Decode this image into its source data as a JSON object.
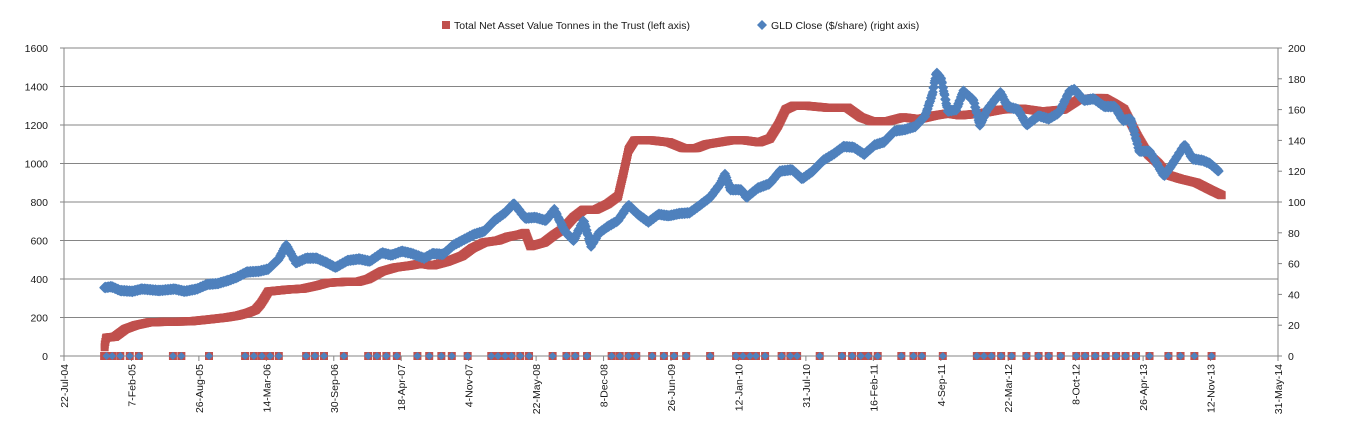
{
  "chart_data": {
    "type": "scatter",
    "series": [
      {
        "name": "Total Net Asset Value Tonnes in the Trust (left axis)",
        "axis": "left",
        "color": "#c0504d",
        "marker": "square",
        "points": [
          [
            "2004-11-18",
            0
          ],
          [
            "2004-11-20",
            60
          ],
          [
            "2004-11-24",
            95
          ],
          [
            "2004-12-20",
            100
          ],
          [
            "2005-01-20",
            140
          ],
          [
            "2005-02-20",
            160
          ],
          [
            "2005-04-01",
            175
          ],
          [
            "2005-06-01",
            178
          ],
          [
            "2005-08-01",
            180
          ],
          [
            "2005-09-25",
            190
          ],
          [
            "2005-11-15",
            200
          ],
          [
            "2005-12-20",
            210
          ],
          [
            "2006-01-20",
            225
          ],
          [
            "2006-02-10",
            240
          ],
          [
            "2006-02-25",
            270
          ],
          [
            "2006-03-08",
            300
          ],
          [
            "2006-03-20",
            335
          ],
          [
            "2006-05-15",
            345
          ],
          [
            "2006-07-01",
            350
          ],
          [
            "2006-08-10",
            365
          ],
          [
            "2006-09-10",
            380
          ],
          [
            "2006-11-01",
            385
          ],
          [
            "2006-12-10",
            385
          ],
          [
            "2007-01-10",
            400
          ],
          [
            "2007-02-20",
            440
          ],
          [
            "2007-04-01",
            460
          ],
          [
            "2007-05-15",
            470
          ],
          [
            "2007-06-15",
            480
          ],
          [
            "2007-07-20",
            470
          ],
          [
            "2007-09-01",
            490
          ],
          [
            "2007-10-15",
            520
          ],
          [
            "2007-11-15",
            560
          ],
          [
            "2007-12-20",
            590
          ],
          [
            "2008-01-30",
            600
          ],
          [
            "2008-03-01",
            620
          ],
          [
            "2008-04-01",
            630
          ],
          [
            "2008-04-20",
            640
          ],
          [
            "2008-05-05",
            570
          ],
          [
            "2008-06-15",
            590
          ],
          [
            "2008-07-15",
            630
          ],
          [
            "2008-08-10",
            660
          ],
          [
            "2008-09-10",
            720
          ],
          [
            "2008-10-10",
            760
          ],
          [
            "2008-11-15",
            760
          ],
          [
            "2008-12-20",
            790
          ],
          [
            "2009-01-20",
            830
          ],
          [
            "2009-02-05",
            950
          ],
          [
            "2009-02-20",
            1070
          ],
          [
            "2009-03-10",
            1120
          ],
          [
            "2009-05-01",
            1120
          ],
          [
            "2009-06-20",
            1110
          ],
          [
            "2009-08-01",
            1080
          ],
          [
            "2009-09-10",
            1080
          ],
          [
            "2009-10-10",
            1100
          ],
          [
            "2009-11-15",
            1110
          ],
          [
            "2009-12-20",
            1120
          ],
          [
            "2010-02-01",
            1120
          ],
          [
            "2010-03-15",
            1110
          ],
          [
            "2010-04-15",
            1130
          ],
          [
            "2010-05-10",
            1200
          ],
          [
            "2010-06-01",
            1280
          ],
          [
            "2010-06-25",
            1300
          ],
          [
            "2010-08-01",
            1300
          ],
          [
            "2010-10-01",
            1290
          ],
          [
            "2010-12-01",
            1290
          ],
          [
            "2011-01-10",
            1240
          ],
          [
            "2011-02-10",
            1220
          ],
          [
            "2011-04-01",
            1220
          ],
          [
            "2011-05-15",
            1240
          ],
          [
            "2011-07-01",
            1230
          ],
          [
            "2011-08-20",
            1250
          ],
          [
            "2011-09-25",
            1260
          ],
          [
            "2011-11-01",
            1250
          ],
          [
            "2012-01-01",
            1260
          ],
          [
            "2012-03-01",
            1280
          ],
          [
            "2012-05-01",
            1285
          ],
          [
            "2012-07-01",
            1270
          ],
          [
            "2012-09-01",
            1280
          ],
          [
            "2012-10-15",
            1330
          ],
          [
            "2012-12-01",
            1340
          ],
          [
            "2013-01-01",
            1340
          ],
          [
            "2013-02-01",
            1310
          ],
          [
            "2013-03-01",
            1280
          ],
          [
            "2013-04-10",
            1140
          ],
          [
            "2013-05-10",
            1050
          ],
          [
            "2013-06-10",
            1000
          ],
          [
            "2013-07-10",
            940
          ],
          [
            "2013-08-15",
            920
          ],
          [
            "2013-10-01",
            900
          ],
          [
            "2013-11-15",
            860
          ],
          [
            "2013-12-15",
            835
          ]
        ]
      },
      {
        "name": "GLD Close ($/share) (right axis)",
        "axis": "right",
        "color": "#4f81bd",
        "marker": "diamond",
        "points": [
          [
            "2004-11-18",
            44.4
          ],
          [
            "2004-12-10",
            45.0
          ],
          [
            "2005-01-05",
            42.5
          ],
          [
            "2005-02-10",
            42.0
          ],
          [
            "2005-03-10",
            43.5
          ],
          [
            "2005-05-01",
            42.5
          ],
          [
            "2005-06-15",
            43.5
          ],
          [
            "2005-07-15",
            42.0
          ],
          [
            "2005-08-20",
            43.5
          ],
          [
            "2005-09-20",
            46.5
          ],
          [
            "2005-10-20",
            47.0
          ],
          [
            "2005-11-20",
            49.0
          ],
          [
            "2005-12-15",
            51.0
          ],
          [
            "2006-01-15",
            54.5
          ],
          [
            "2006-02-20",
            55.0
          ],
          [
            "2006-03-20",
            56.5
          ],
          [
            "2006-04-20",
            63.0
          ],
          [
            "2006-05-12",
            72.0
          ],
          [
            "2006-06-10",
            60.5
          ],
          [
            "2006-07-10",
            63.5
          ],
          [
            "2006-08-10",
            63.5
          ],
          [
            "2006-09-10",
            60.5
          ],
          [
            "2006-10-05",
            57.5
          ],
          [
            "2006-11-10",
            62.0
          ],
          [
            "2006-12-15",
            63.0
          ],
          [
            "2007-01-15",
            61.5
          ],
          [
            "2007-02-20",
            67.0
          ],
          [
            "2007-03-20",
            65.5
          ],
          [
            "2007-04-20",
            68.0
          ],
          [
            "2007-05-20",
            66.5
          ],
          [
            "2007-06-25",
            63.5
          ],
          [
            "2007-07-20",
            66.5
          ],
          [
            "2007-08-20",
            66.0
          ],
          [
            "2007-09-20",
            72.0
          ],
          [
            "2007-10-20",
            75.5
          ],
          [
            "2007-11-20",
            79.0
          ],
          [
            "2007-12-20",
            81.0
          ],
          [
            "2008-01-20",
            88.0
          ],
          [
            "2008-02-20",
            93.0
          ],
          [
            "2008-03-17",
            99.0
          ],
          [
            "2008-04-20",
            89.5
          ],
          [
            "2008-05-20",
            90.0
          ],
          [
            "2008-06-20",
            88.0
          ],
          [
            "2008-07-15",
            95.0
          ],
          [
            "2008-08-15",
            81.0
          ],
          [
            "2008-09-10",
            75.0
          ],
          [
            "2008-10-10",
            88.0
          ],
          [
            "2008-11-01",
            71.5
          ],
          [
            "2008-11-25",
            80.0
          ],
          [
            "2008-12-20",
            84.0
          ],
          [
            "2009-01-20",
            88.0
          ],
          [
            "2009-02-20",
            98.0
          ],
          [
            "2009-03-20",
            92.0
          ],
          [
            "2009-04-20",
            87.0
          ],
          [
            "2009-05-20",
            92.0
          ],
          [
            "2009-06-20",
            91.0
          ],
          [
            "2009-07-20",
            92.5
          ],
          [
            "2009-08-20",
            93.0
          ],
          [
            "2009-09-20",
            98.0
          ],
          [
            "2009-10-20",
            103.0
          ],
          [
            "2009-11-20",
            112.0
          ],
          [
            "2009-12-03",
            118.0
          ],
          [
            "2009-12-20",
            108.0
          ],
          [
            "2010-01-20",
            108.0
          ],
          [
            "2010-02-05",
            103.0
          ],
          [
            "2010-03-10",
            109.0
          ],
          [
            "2010-04-15",
            112.0
          ],
          [
            "2010-05-15",
            120.0
          ],
          [
            "2010-06-20",
            121.0
          ],
          [
            "2010-07-20",
            115.0
          ],
          [
            "2010-08-20",
            120.0
          ],
          [
            "2010-09-20",
            127.0
          ],
          [
            "2010-10-20",
            131.0
          ],
          [
            "2010-11-20",
            136.0
          ],
          [
            "2010-12-20",
            135.5
          ],
          [
            "2011-01-20",
            131.0
          ],
          [
            "2011-02-20",
            137.0
          ],
          [
            "2011-03-20",
            139.0
          ],
          [
            "2011-04-20",
            146.0
          ],
          [
            "2011-05-20",
            147.0
          ],
          [
            "2011-06-20",
            149.0
          ],
          [
            "2011-07-20",
            156.0
          ],
          [
            "2011-08-10",
            170.0
          ],
          [
            "2011-08-22",
            184.0
          ],
          [
            "2011-09-05",
            180.0
          ],
          [
            "2011-09-25",
            159.0
          ],
          [
            "2011-10-20",
            160.0
          ],
          [
            "2011-11-10",
            172.0
          ],
          [
            "2011-12-10",
            166.0
          ],
          [
            "2011-12-29",
            150.0
          ],
          [
            "2012-01-20",
            160.0
          ],
          [
            "2012-02-28",
            171.0
          ],
          [
            "2012-03-20",
            162.0
          ],
          [
            "2012-04-20",
            160.0
          ],
          [
            "2012-05-16",
            150.0
          ],
          [
            "2012-06-20",
            156.0
          ],
          [
            "2012-07-20",
            154.0
          ],
          [
            "2012-08-20",
            158.0
          ],
          [
            "2012-09-20",
            172.0
          ],
          [
            "2012-10-05",
            173.0
          ],
          [
            "2012-11-01",
            166.0
          ],
          [
            "2012-12-01",
            167.0
          ],
          [
            "2013-01-01",
            162.0
          ],
          [
            "2013-02-01",
            162.0
          ],
          [
            "2013-02-25",
            153.0
          ],
          [
            "2013-03-20",
            154.0
          ],
          [
            "2013-04-15",
            133.0
          ],
          [
            "2013-05-15",
            133.0
          ],
          [
            "2013-06-27",
            117.0
          ],
          [
            "2013-07-20",
            124.0
          ],
          [
            "2013-08-27",
            137.0
          ],
          [
            "2013-09-20",
            128.0
          ],
          [
            "2013-10-20",
            127.0
          ],
          [
            "2013-11-10",
            125.0
          ],
          [
            "2013-12-06",
            120.0
          ]
        ]
      }
    ],
    "x_zero_markers": {
      "value": 0,
      "dates": [
        "2004-11-25",
        "2004-12-12",
        "2005-01-05",
        "2005-02-02",
        "2005-03-01",
        "2005-06-10",
        "2005-07-05",
        "2005-09-25",
        "2006-01-10",
        "2006-02-05",
        "2006-03-01",
        "2006-03-25",
        "2006-04-20",
        "2006-07-10",
        "2006-08-05",
        "2006-09-01",
        "2006-10-30",
        "2007-01-10",
        "2007-02-05",
        "2007-03-05",
        "2007-04-05",
        "2007-06-05",
        "2007-07-10",
        "2007-08-15",
        "2007-09-15",
        "2007-11-01",
        "2008-01-10",
        "2008-01-30",
        "2008-02-20",
        "2008-03-10",
        "2008-04-05",
        "2008-05-01",
        "2008-07-10",
        "2008-08-20",
        "2008-09-15",
        "2008-10-20",
        "2009-01-01",
        "2009-01-25",
        "2009-02-20",
        "2009-03-15",
        "2009-05-01",
        "2009-06-05",
        "2009-07-05",
        "2009-08-10",
        "2009-10-20",
        "2010-01-05",
        "2010-01-25",
        "2010-02-15",
        "2010-03-05",
        "2010-04-01",
        "2010-05-20",
        "2010-06-15",
        "2010-07-05",
        "2010-09-10",
        "2010-11-15",
        "2010-12-15",
        "2011-01-10",
        "2011-02-01",
        "2011-03-01",
        "2011-05-10",
        "2011-06-15",
        "2011-07-10",
        "2011-09-10",
        "2011-12-20",
        "2012-01-10",
        "2012-02-01",
        "2012-03-01",
        "2012-04-01",
        "2012-05-15",
        "2012-06-20",
        "2012-07-20",
        "2012-08-25",
        "2012-10-10",
        "2012-11-05",
        "2012-12-05",
        "2013-01-05",
        "2013-02-05",
        "2013-03-05",
        "2013-04-05",
        "2013-05-15",
        "2013-07-10",
        "2013-08-15",
        "2013-09-25",
        "2013-11-15"
      ]
    },
    "y_left": {
      "range": [
        0,
        1600
      ],
      "ticks": [
        0,
        200,
        400,
        600,
        800,
        1000,
        1200,
        1400,
        1600
      ]
    },
    "y_right": {
      "range": [
        0,
        200
      ],
      "ticks": [
        0,
        20,
        40,
        60,
        80,
        100,
        120,
        140,
        160,
        180,
        200
      ]
    },
    "x_axis": {
      "range": [
        "2004-07-22",
        "2014-05-31"
      ],
      "tick_labels": [
        "22-Jul-04",
        "7-Feb-05",
        "26-Aug-05",
        "14-Mar-06",
        "30-Sep-06",
        "18-Apr-07",
        "4-Nov-07",
        "22-May-08",
        "8-Dec-08",
        "26-Jun-09",
        "12-Jan-10",
        "31-Jul-10",
        "16-Feb-11",
        "4-Sep-11",
        "22-Mar-12",
        "8-Oct-12",
        "26-Apr-13",
        "12-Nov-13",
        "31-May-14"
      ],
      "tick_dates": [
        "2004-07-22",
        "2005-02-07",
        "2005-08-26",
        "2006-03-14",
        "2006-09-30",
        "2007-04-18",
        "2007-11-04",
        "2008-05-22",
        "2008-12-08",
        "2009-06-26",
        "2010-01-12",
        "2010-07-31",
        "2011-02-16",
        "2011-09-04",
        "2012-03-22",
        "2012-10-08",
        "2013-04-26",
        "2013-11-12",
        "2014-05-31"
      ]
    },
    "grid": {
      "horizontal": true,
      "vertical": false
    },
    "legend": {
      "position": "top"
    }
  }
}
